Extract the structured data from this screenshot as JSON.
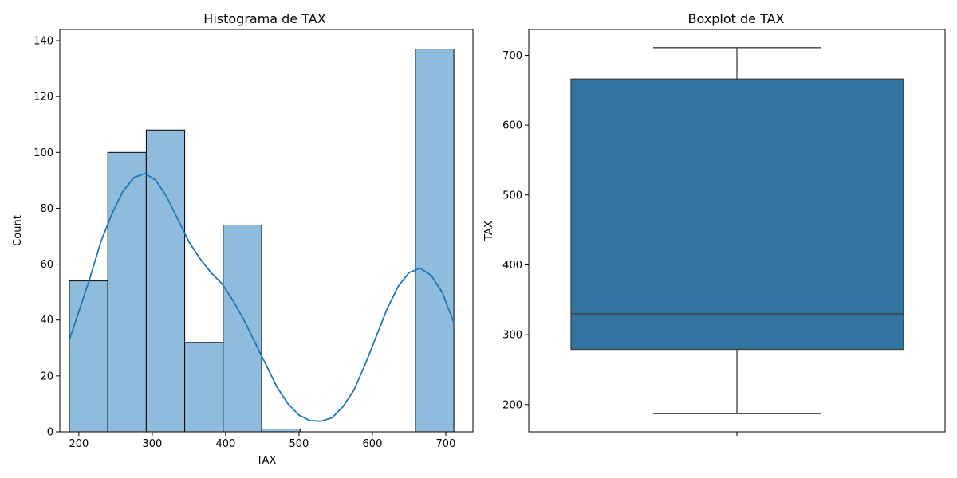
{
  "chart_data": [
    {
      "type": "bar",
      "subtype": "histogram-with-kde",
      "title": "Histograma de TAX",
      "xlabel": "TAX",
      "ylabel": "Count",
      "xlim": [
        174,
        737
      ],
      "ylim": [
        0,
        144
      ],
      "xticks": [
        200,
        300,
        400,
        500,
        600,
        700
      ],
      "yticks": [
        0,
        20,
        40,
        60,
        80,
        100,
        120,
        140
      ],
      "bins": [
        {
          "x0": 187.0,
          "x1": 239.4,
          "count": 54
        },
        {
          "x0": 239.4,
          "x1": 291.8,
          "count": 100
        },
        {
          "x0": 291.8,
          "x1": 344.2,
          "count": 108
        },
        {
          "x0": 344.2,
          "x1": 396.6,
          "count": 32
        },
        {
          "x0": 396.6,
          "x1": 449.0,
          "count": 74
        },
        {
          "x0": 449.0,
          "x1": 501.4,
          "count": 1
        },
        {
          "x0": 501.4,
          "x1": 553.8,
          "count": 0
        },
        {
          "x0": 553.8,
          "x1": 606.2,
          "count": 0
        },
        {
          "x0": 606.2,
          "x1": 658.6,
          "count": 0
        },
        {
          "x0": 658.6,
          "x1": 711.0,
          "count": 137
        }
      ],
      "kde": {
        "x": [
          187,
          200,
          215,
          230,
          245,
          260,
          275,
          290,
          305,
          320,
          335,
          350,
          365,
          380,
          395,
          410,
          425,
          440,
          455,
          470,
          485,
          500,
          515,
          530,
          545,
          560,
          575,
          590,
          605,
          620,
          635,
          650,
          665,
          680,
          695,
          711
        ],
        "y": [
          33,
          43,
          55,
          68,
          78,
          86,
          91,
          92.5,
          90,
          84,
          76,
          68,
          62,
          57,
          53,
          47,
          40,
          32,
          24,
          16,
          10,
          6,
          4,
          3.8,
          5,
          9,
          15,
          24,
          34,
          44,
          52,
          57,
          58.5,
          56,
          50,
          39
        ]
      },
      "colors": {
        "bar_fill": "#8fbbdc",
        "bar_edge": "#000000",
        "kde_line": "#1f77b4"
      }
    },
    {
      "type": "boxplot",
      "title": "Boxplot de TAX",
      "xlabel": "",
      "ylabel": "TAX",
      "ylim": [
        161,
        737
      ],
      "yticks": [
        200,
        300,
        400,
        500,
        600,
        700
      ],
      "stats": {
        "min": 187,
        "q1": 279,
        "median": 330,
        "q3": 666,
        "max": 711
      },
      "colors": {
        "box_fill": "#3274a1",
        "line": "#3f3f3f"
      }
    }
  ]
}
